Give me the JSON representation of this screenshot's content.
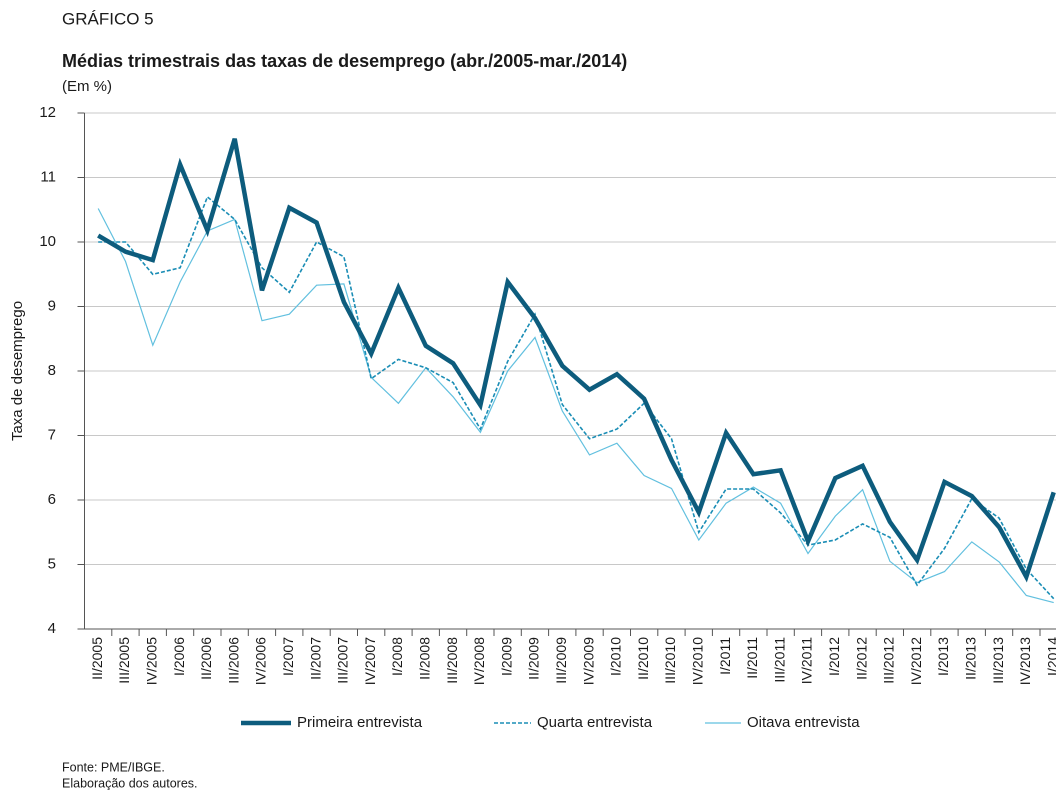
{
  "chart_data": {
    "type": "line",
    "kicker": "GRÁFICO 5",
    "title": "Médias trimestrais das taxas de desemprego (abr./2005-mar./2014)",
    "subtitle": "(Em %)",
    "ylabel": "Taxa de desemprego",
    "notes": [
      "Fonte: PME/IBGE.",
      "Elaboração dos autores."
    ],
    "categories": [
      "II/2005",
      "III/2005",
      "IV/2005",
      "I/2006",
      "II/2006",
      "III/2006",
      "IV/2006",
      "I/2007",
      "II/2007",
      "III/2007",
      "IV/2007",
      "I/2008",
      "II/2008",
      "III/2008",
      "IV/2008",
      "I/2009",
      "II/2009",
      "III/2009",
      "IV/2009",
      "I/2010",
      "II/2010",
      "III/2010",
      "IV/2010",
      "I/2011",
      "II/2011",
      "III/2011",
      "IV/2011",
      "I/2012",
      "II/2012",
      "III/2012",
      "IV/2012",
      "I/2013",
      "II/2013",
      "III/2013",
      "IV/2013",
      "I/2014"
    ],
    "series": [
      {
        "name": "Primeira entrevista",
        "color": "#0d5c7d",
        "style": "thick",
        "values": [
          10.1,
          9.85,
          9.72,
          11.2,
          10.18,
          11.6,
          9.25,
          10.53,
          10.3,
          9.07,
          8.27,
          9.29,
          8.39,
          8.12,
          7.47,
          9.38,
          8.82,
          8.08,
          7.71,
          7.95,
          7.57,
          6.62,
          5.81,
          7.04,
          6.4,
          6.46,
          5.36,
          6.34,
          6.53,
          5.66,
          5.07,
          6.28,
          6.06,
          5.58,
          4.81,
          6.12
        ]
      },
      {
        "name": "Quarta entrevista",
        "color": "#1a8db5",
        "style": "dashed",
        "values": [
          10.0,
          10.0,
          9.5,
          9.6,
          10.7,
          10.35,
          9.6,
          9.22,
          10.0,
          9.77,
          7.88,
          8.18,
          8.05,
          7.82,
          7.1,
          8.15,
          8.88,
          7.48,
          6.95,
          7.1,
          7.5,
          6.95,
          5.5,
          6.17,
          6.17,
          5.8,
          5.3,
          5.38,
          5.63,
          5.42,
          4.68,
          5.25,
          6.02,
          5.72,
          4.93,
          4.47
        ]
      },
      {
        "name": "Oitava entrevista",
        "color": "#62c0df",
        "style": "thin",
        "values": [
          10.52,
          9.7,
          8.4,
          9.38,
          10.17,
          10.35,
          8.78,
          8.88,
          9.33,
          9.35,
          7.9,
          7.5,
          8.05,
          7.6,
          7.05,
          8.0,
          8.52,
          7.38,
          6.7,
          6.88,
          6.38,
          6.18,
          5.38,
          5.95,
          6.2,
          5.95,
          5.17,
          5.75,
          6.16,
          5.05,
          4.72,
          4.89,
          5.35,
          5.04,
          4.52,
          4.41
        ]
      }
    ],
    "ylim": [
      4,
      12
    ],
    "yticks": [
      4,
      5,
      6,
      7,
      8,
      9,
      10,
      11,
      12
    ],
    "grid": true
  }
}
